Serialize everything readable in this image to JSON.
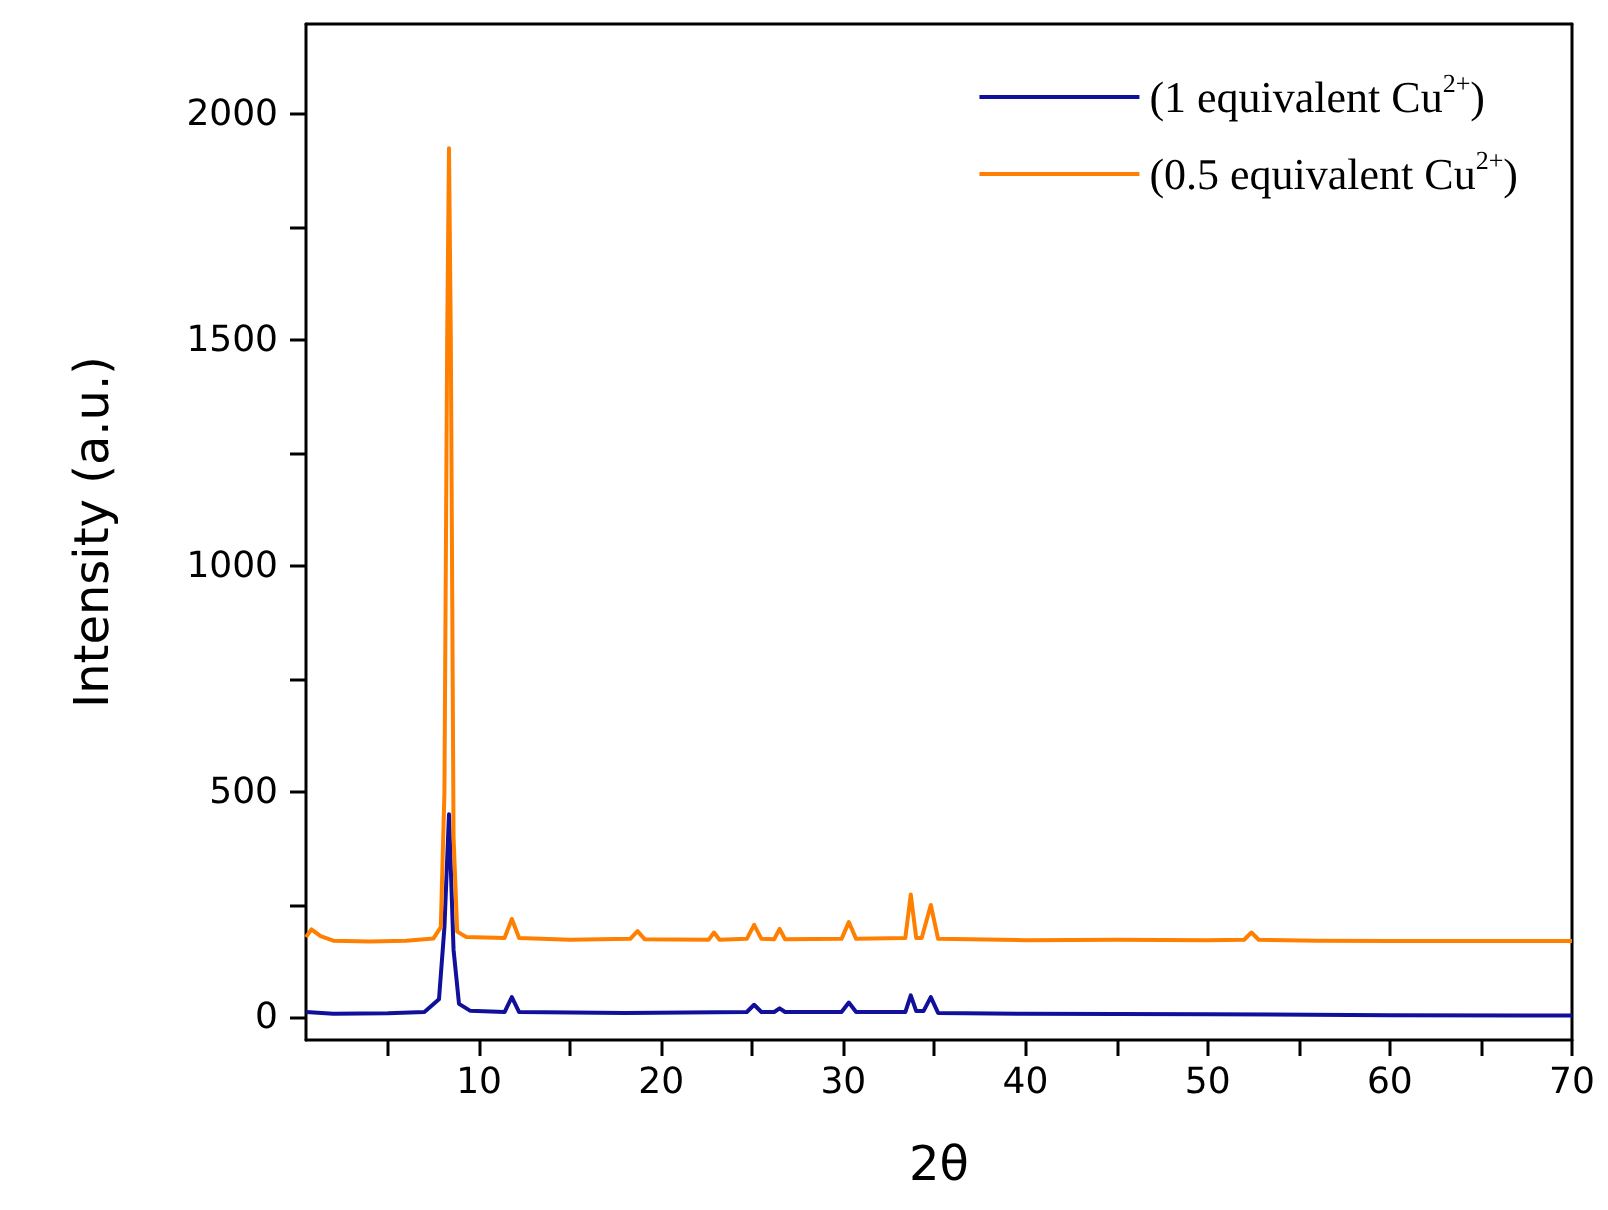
{
  "chart_data": {
    "type": "line",
    "xlabel": "2θ",
    "ylabel": "Intensity (a.u.)",
    "xlim": [
      0.5,
      70
    ],
    "ylim": [
      -50,
      2200
    ],
    "xticks": [
      {
        "value": 5,
        "label": null
      },
      10,
      {
        "value": 15,
        "label": null
      },
      20,
      {
        "value": 25,
        "label": null
      },
      30,
      {
        "value": 35,
        "label": null
      },
      40,
      {
        "value": 45,
        "label": null
      },
      50,
      {
        "value": 55,
        "label": null
      },
      60,
      {
        "value": 65,
        "label": null
      },
      70
    ],
    "yticks": [
      0,
      {
        "value": 250,
        "label": null
      },
      500,
      {
        "value": 750,
        "label": null
      },
      1000,
      {
        "value": 1250,
        "label": null
      },
      1500,
      {
        "value": 1750,
        "label": null
      },
      2000
    ],
    "legend": "top right",
    "grid": false,
    "marker": "none",
    "line_style": "solid",
    "series": [
      {
        "name": "(1 equivalent Cu$^{2+}$)",
        "color": "#10109a",
        "x": [
          0.5,
          2,
          5,
          7,
          7.8,
          8.1,
          8.35,
          8.6,
          8.9,
          9.5,
          11.4,
          11.8,
          12.2,
          18,
          24.7,
          25.1,
          25.5,
          26.2,
          26.5,
          26.8,
          29.9,
          30.3,
          30.7,
          33.4,
          33.7,
          34.0,
          34.4,
          34.8,
          35.2,
          40,
          50,
          60,
          70
        ],
        "values": [
          12,
          8,
          9,
          12,
          40,
          200,
          450,
          150,
          30,
          15,
          12,
          45,
          12,
          10,
          12,
          28,
          12,
          12,
          20,
          12,
          12,
          33,
          12,
          12,
          49,
          14,
          14,
          45,
          10,
          8,
          7,
          5,
          4
        ]
      },
      {
        "name": "(0.5 equivalent Cu$^{2+}$)",
        "color": "#ff8000",
        "x": [
          0.5,
          0.8,
          1.3,
          2,
          4,
          6,
          7.5,
          7.9,
          8.1,
          8.25,
          8.35,
          8.45,
          8.6,
          8.8,
          9.3,
          11.4,
          11.8,
          12.2,
          15,
          18.3,
          18.7,
          19.1,
          22.6,
          22.9,
          23.2,
          24.7,
          25.1,
          25.5,
          26.2,
          26.5,
          26.8,
          29.9,
          30.3,
          30.7,
          33.4,
          33.7,
          34.0,
          34.3,
          34.8,
          35.2,
          40,
          45,
          50,
          52,
          52.4,
          52.8,
          56,
          60,
          65,
          70
        ],
        "values": [
          178,
          195,
          180,
          170,
          168,
          170,
          175,
          200,
          500,
          1500,
          1925,
          1500,
          400,
          190,
          178,
          176,
          218,
          176,
          172,
          174,
          191,
          173,
          172,
          188,
          172,
          174,
          205,
          174,
          173,
          196,
          173,
          174,
          211,
          174,
          176,
          272,
          176,
          176,
          249,
          174,
          171,
          172,
          171,
          172,
          188,
          172,
          170,
          169,
          169,
          169
        ]
      }
    ]
  }
}
